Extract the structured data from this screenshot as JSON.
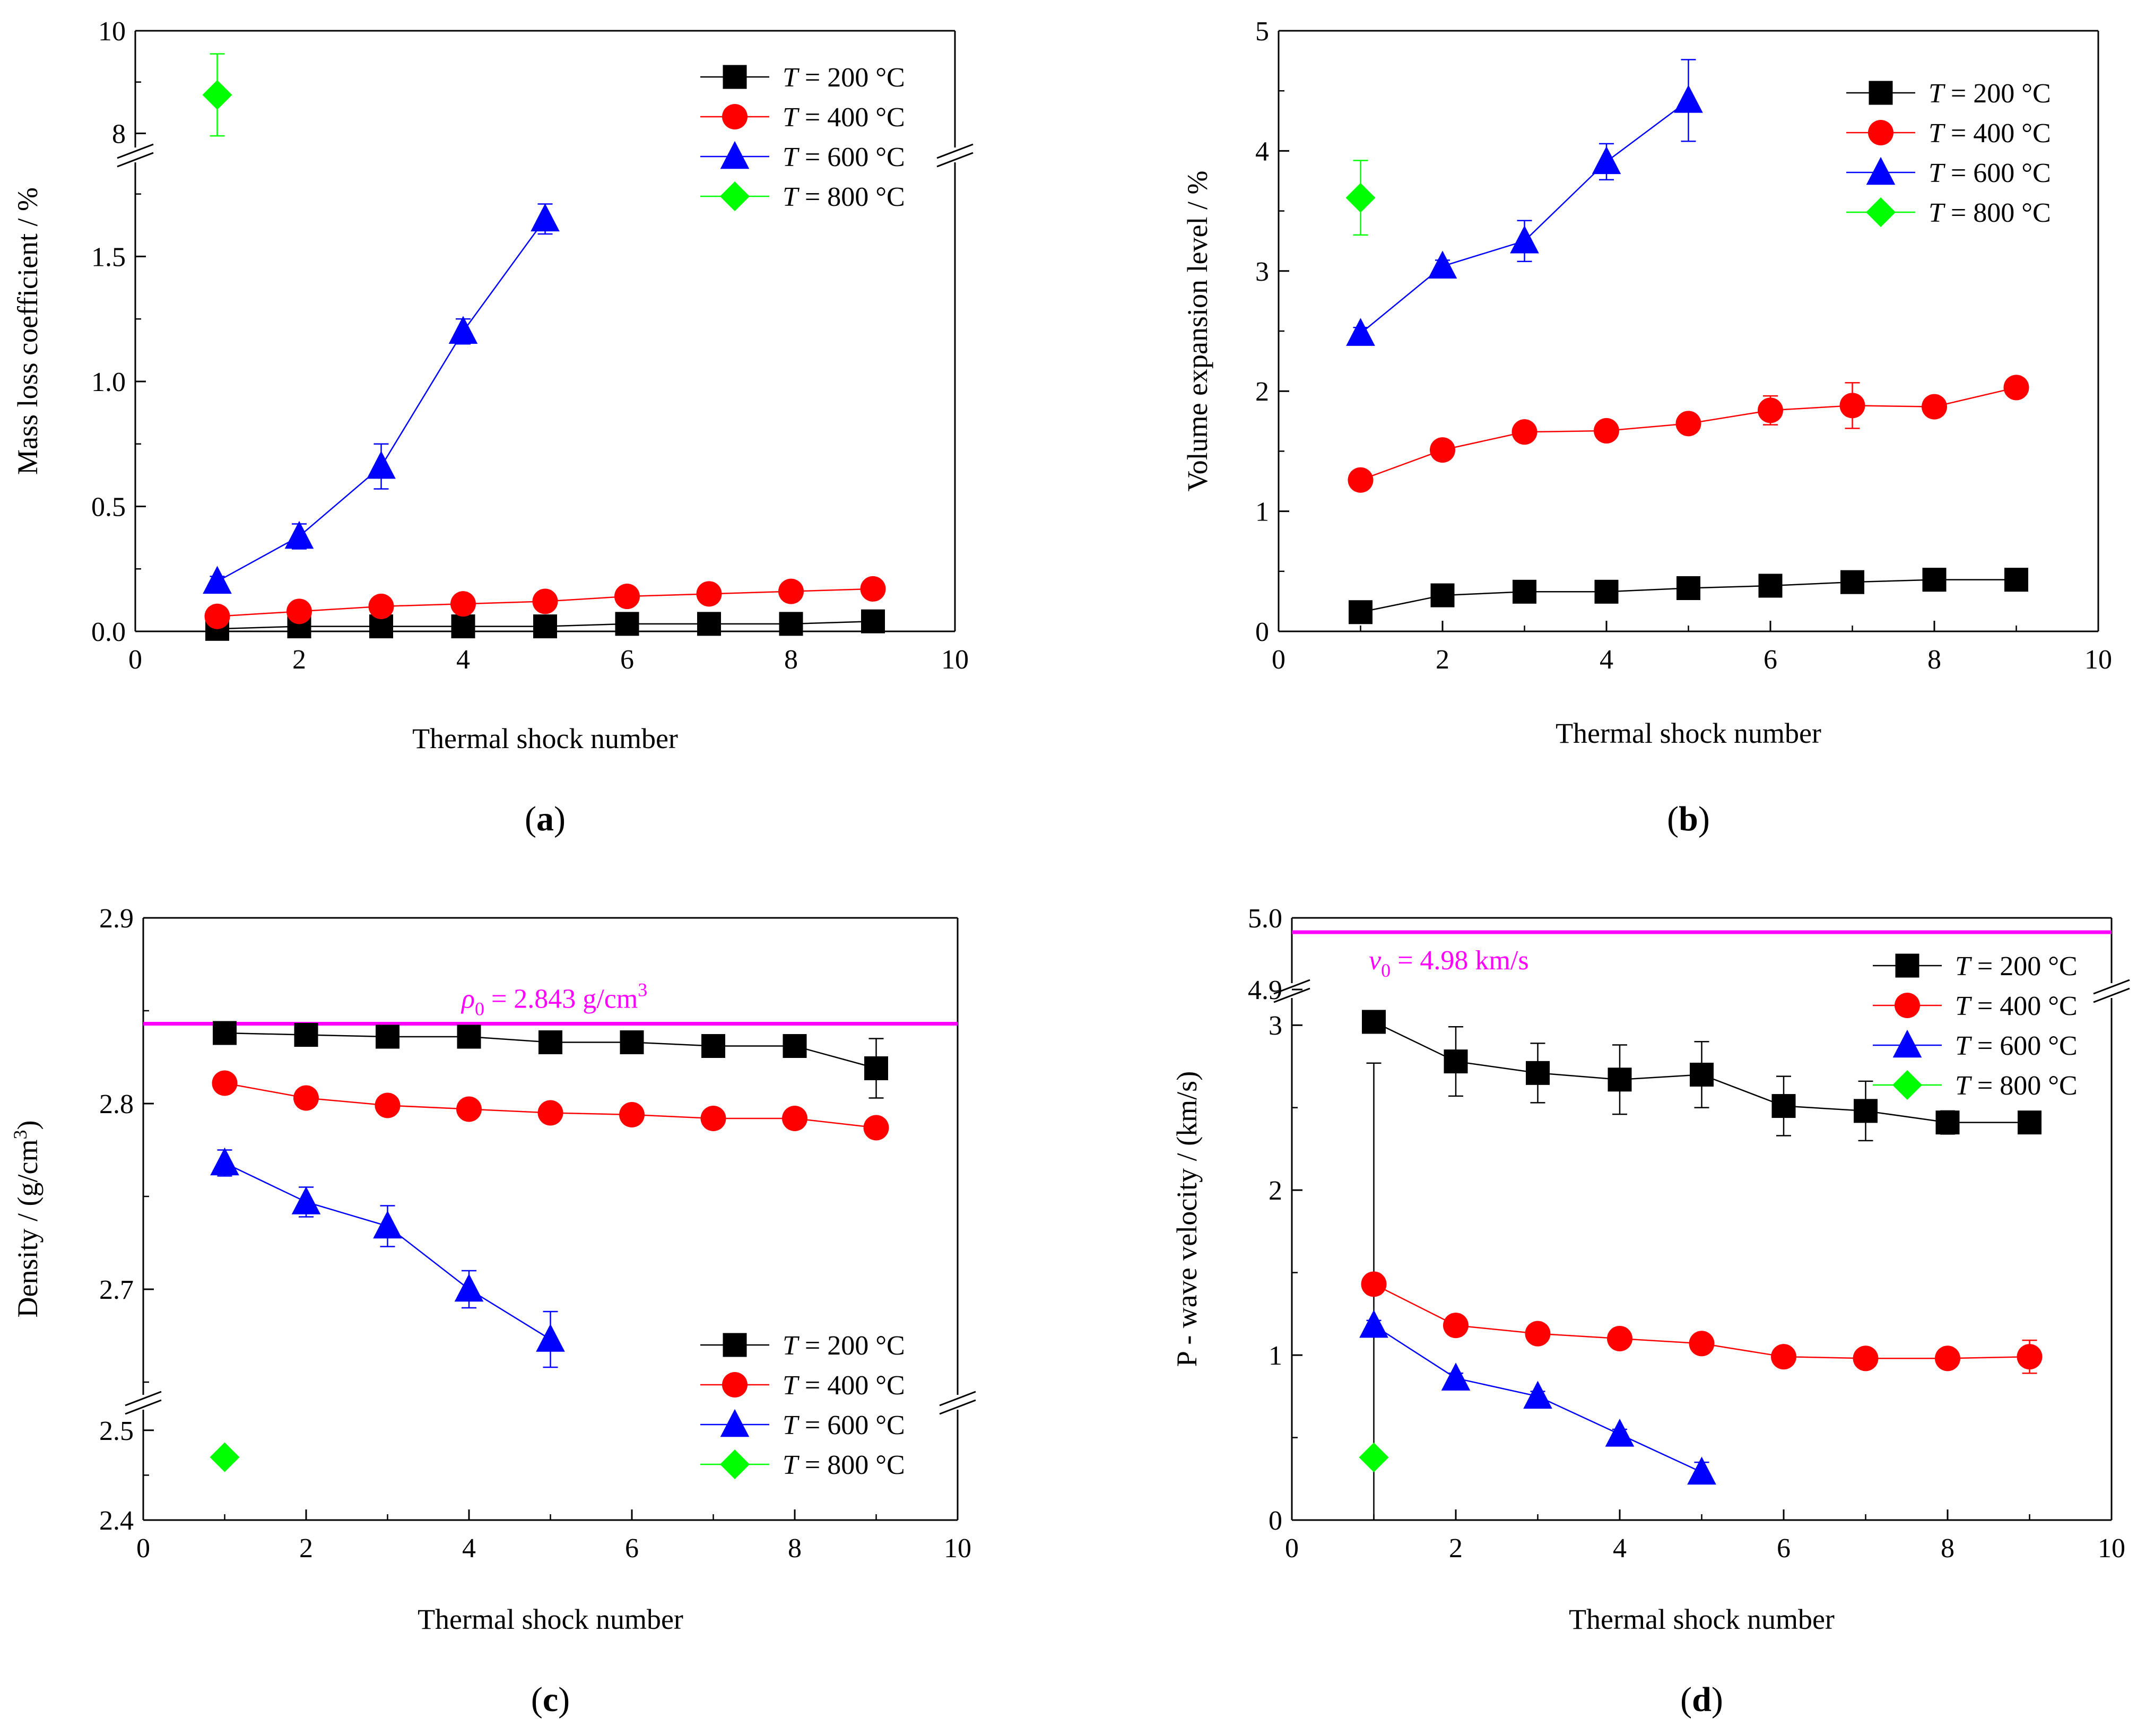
{
  "figure": {
    "panels": [
      {
        "id": "a",
        "caption_letter": "a"
      },
      {
        "id": "b",
        "caption_letter": "b"
      },
      {
        "id": "c",
        "caption_letter": "c"
      },
      {
        "id": "d",
        "caption_letter": "d"
      }
    ],
    "legend_labels": [
      {
        "italic": "T",
        "rest": " = 200 °C"
      },
      {
        "italic": "T",
        "rest": " = 400 °C"
      },
      {
        "italic": "T",
        "rest": " = 600 °C"
      },
      {
        "italic": "T",
        "rest": " = 800 °C"
      }
    ],
    "series_colors": {
      "T200": "#000000",
      "T400": "#ff0000",
      "T600": "#0000ff",
      "T800": "#00ff00"
    },
    "series_markers": {
      "T200": "square",
      "T400": "circle",
      "T600": "triangle",
      "T800": "diamond"
    },
    "reference_color": "#ff00ff"
  },
  "chart_data": [
    {
      "id": "a",
      "type": "scatter",
      "title": "",
      "xlabel": "Thermal shock number",
      "ylabel": "Mass loss coefficient / %",
      "xlim": [
        0,
        10
      ],
      "x_ticks": [
        "0",
        "2",
        "4",
        "6",
        "8",
        "10"
      ],
      "y_ticks_lower": [
        "0.0",
        "0.5",
        "1.0",
        "1.5"
      ],
      "y_ticks_upper": [
        "8",
        "10"
      ],
      "ylim_lower": [
        0,
        1.9
      ],
      "ylim_upper": [
        7.6,
        10
      ],
      "axis_break": true,
      "series": [
        {
          "name": "T = 200 °C",
          "key": "T200",
          "x": [
            1,
            2,
            3,
            4,
            5,
            6,
            7,
            8,
            9
          ],
          "values": [
            0.01,
            0.02,
            0.02,
            0.02,
            0.02,
            0.03,
            0.03,
            0.03,
            0.04
          ],
          "errors": [
            0.01,
            0.01,
            0.01,
            0.01,
            0.01,
            0.01,
            0.01,
            0.01,
            0.01
          ]
        },
        {
          "name": "T = 400 °C",
          "key": "T400",
          "x": [
            1,
            2,
            3,
            4,
            5,
            6,
            7,
            8,
            9
          ],
          "values": [
            0.06,
            0.08,
            0.1,
            0.11,
            0.12,
            0.14,
            0.15,
            0.16,
            0.17
          ],
          "errors": [
            0.01,
            0.01,
            0.01,
            0.01,
            0.01,
            0.01,
            0.01,
            0.01,
            0.01
          ]
        },
        {
          "name": "T = 600 °C",
          "key": "T600",
          "x": [
            1,
            2,
            3,
            4,
            5
          ],
          "values": [
            0.2,
            0.38,
            0.66,
            1.2,
            1.65
          ],
          "errors": [
            0.02,
            0.05,
            0.09,
            0.05,
            0.06
          ]
        },
        {
          "name": "T = 800 °C",
          "key": "T800",
          "x": [
            1
          ],
          "values": [
            8.75
          ],
          "errors": [
            0.8
          ]
        }
      ]
    },
    {
      "id": "b",
      "type": "scatter",
      "title": "",
      "xlabel": "Thermal shock number",
      "ylabel": "Volume expansion level / %",
      "xlim": [
        0,
        10
      ],
      "ylim": [
        0,
        5
      ],
      "x_ticks": [
        "0",
        "2",
        "4",
        "6",
        "8",
        "10"
      ],
      "y_ticks": [
        "0",
        "1",
        "2",
        "3",
        "4",
        "5"
      ],
      "axis_break": false,
      "series": [
        {
          "name": "T = 200 °C",
          "key": "T200",
          "x": [
            1,
            2,
            3,
            4,
            5,
            6,
            7,
            8,
            9
          ],
          "values": [
            0.16,
            0.3,
            0.33,
            0.33,
            0.36,
            0.38,
            0.41,
            0.43,
            0.43
          ],
          "errors": [
            0.02,
            0.03,
            0.03,
            0.03,
            0.03,
            0.03,
            0.03,
            0.03,
            0.03
          ]
        },
        {
          "name": "T = 400 °C",
          "key": "T400",
          "x": [
            1,
            2,
            3,
            4,
            5,
            6,
            7,
            8,
            9
          ],
          "values": [
            1.26,
            1.51,
            1.66,
            1.67,
            1.73,
            1.84,
            1.88,
            1.87,
            2.03
          ],
          "errors": [
            0.04,
            0.04,
            0.05,
            0.05,
            0.05,
            0.12,
            0.19,
            0.05,
            0.05
          ]
        },
        {
          "name": "T = 600 °C",
          "key": "T600",
          "x": [
            1,
            2,
            3,
            4,
            5
          ],
          "values": [
            2.48,
            3.04,
            3.25,
            3.91,
            4.42
          ],
          "errors": [
            0.05,
            0.05,
            0.17,
            0.15,
            0.34
          ]
        },
        {
          "name": "T = 800 °C",
          "key": "T800",
          "x": [
            1
          ],
          "values": [
            3.61
          ],
          "errors": [
            0.31
          ]
        }
      ]
    },
    {
      "id": "c",
      "type": "scatter",
      "title": "",
      "xlabel": "Thermal shock number",
      "ylabel": "Density / (g/cm3)",
      "ylabel_parts": {
        "main": "Density / (g/cm",
        "sup": "3",
        "end": ")"
      },
      "xlim": [
        0,
        10
      ],
      "x_ticks": [
        "0",
        "2",
        "4",
        "6",
        "8",
        "10"
      ],
      "y_ticks_upper": [
        "2.7",
        "2.8",
        "2.9"
      ],
      "y_ticks_lower": [
        "2.4",
        "2.5"
      ],
      "ylim_upper": [
        2.64,
        2.9
      ],
      "ylim_lower": [
        2.4,
        2.53
      ],
      "axis_break": true,
      "reference_line": {
        "value": 2.843,
        "label_italic": "ρ",
        "label_sub": "0",
        "label_text": " = 2.843 g/cm",
        "label_sup": "3"
      },
      "series": [
        {
          "name": "T = 200 °C",
          "key": "T200",
          "x": [
            1,
            2,
            3,
            4,
            5,
            6,
            7,
            8,
            9
          ],
          "values": [
            2.838,
            2.837,
            2.836,
            2.836,
            2.833,
            2.833,
            2.831,
            2.831,
            2.819
          ],
          "errors": [
            0.004,
            0.003,
            0.003,
            0.003,
            0.003,
            0.003,
            0.003,
            0.003,
            0.016
          ]
        },
        {
          "name": "T = 400 °C",
          "key": "T400",
          "x": [
            1,
            2,
            3,
            4,
            5,
            6,
            7,
            8,
            9
          ],
          "values": [
            2.811,
            2.803,
            2.799,
            2.797,
            2.795,
            2.794,
            2.792,
            2.792,
            2.787
          ],
          "errors": [
            0.003,
            0.003,
            0.003,
            0.003,
            0.003,
            0.003,
            0.003,
            0.003,
            0.003
          ]
        },
        {
          "name": "T = 600 °C",
          "key": "T600",
          "x": [
            1,
            2,
            3,
            4,
            5
          ],
          "values": [
            2.768,
            2.747,
            2.734,
            2.7,
            2.673
          ],
          "errors": [
            0.007,
            0.008,
            0.011,
            0.01,
            0.015
          ]
        },
        {
          "name": "T = 800 °C",
          "key": "T800",
          "x": [
            1
          ],
          "values": [
            2.47
          ],
          "errors": [
            0.005
          ]
        }
      ]
    },
    {
      "id": "d",
      "type": "scatter",
      "title": "",
      "xlabel": "Thermal shock number",
      "ylabel": "P - wave velocity / (km/s)",
      "xlim": [
        0,
        10
      ],
      "x_ticks": [
        "0",
        "2",
        "4",
        "6",
        "8",
        "10"
      ],
      "y_ticks_lower": [
        "0",
        "1",
        "2",
        "3"
      ],
      "y_ticks_upper": [
        "4.9",
        "5.0"
      ],
      "ylim_lower": [
        0,
        3.2
      ],
      "ylim_upper": [
        4.9,
        5.0
      ],
      "axis_break": true,
      "reference_line": {
        "value": 4.98,
        "label_italic": "v",
        "label_sub": "0",
        "label_text": " = 4.98 km/s",
        "label_sup": ""
      },
      "series": [
        {
          "name": "T = 200 °C",
          "key": "T200",
          "x": [
            1,
            2,
            3,
            4,
            5,
            6,
            7,
            8,
            9
          ],
          "values": [
            3.02,
            2.78,
            2.71,
            2.67,
            2.7,
            2.51,
            2.48,
            2.41,
            2.41
          ],
          "errors": [
            0.25,
            0.21,
            0.18,
            0.21,
            0.2,
            0.18,
            0.18,
            0.07,
            0.04
          ]
        },
        {
          "name": "T = 400 °C",
          "key": "T400",
          "x": [
            1,
            2,
            3,
            4,
            5,
            6,
            7,
            8,
            9
          ],
          "values": [
            1.43,
            1.18,
            1.13,
            1.1,
            1.07,
            0.99,
            0.98,
            0.98,
            0.99
          ],
          "errors": [
            0.06,
            0.04,
            0.04,
            0.04,
            0.04,
            0.04,
            0.04,
            0.04,
            0.1
          ]
        },
        {
          "name": "T = 600 °C",
          "key": "T600",
          "x": [
            1,
            2,
            3,
            4,
            5
          ],
          "values": [
            1.18,
            0.86,
            0.75,
            0.52,
            0.29
          ],
          "errors": [
            0.03,
            0.03,
            0.03,
            0.03,
            0.06
          ]
        },
        {
          "name": "T = 800 °C",
          "key": "T800",
          "x": [
            1
          ],
          "values": [
            0.38
          ],
          "errors": [
            0.02
          ]
        }
      ]
    }
  ]
}
